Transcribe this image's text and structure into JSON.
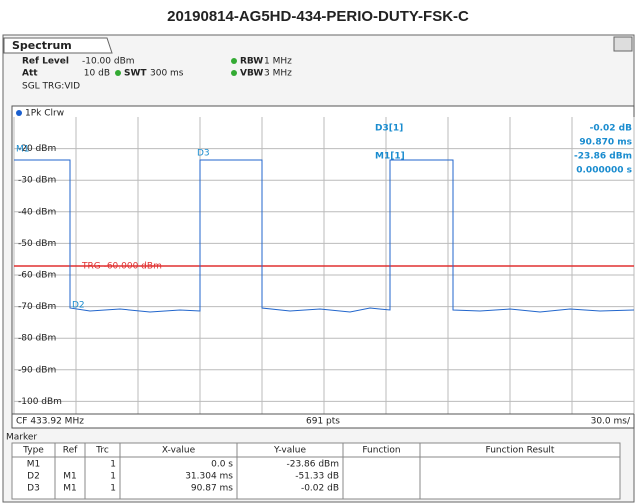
{
  "title": "20190814-AG5HD-434-PERIO-DUTY-FSK-C",
  "tab": "Spectrum",
  "header": {
    "ref_level": "Ref Level",
    "ref_value": "-10.00 dBm",
    "att": "Att",
    "att_value": "10 dB",
    "swt": "SWT",
    "swt_value": "300 ms",
    "rbw": "RBW",
    "rbw_value": "1 MHz",
    "vbw": "VBW",
    "vbw_value": "3 MHz",
    "trigger": "SGL TRG:VID"
  },
  "trace_label": "1Pk Clrw",
  "y_labels": [
    "-20 dBm",
    "-30 dBm",
    "-40 dBm",
    "-50 dBm",
    "-60 dBm",
    "-70 dBm",
    "-80 dBm",
    "-90 dBm",
    "-100 dBm"
  ],
  "trigger_line": "TRG -60.000 dBm",
  "plot_markers": [
    "M1",
    "D2",
    "D3"
  ],
  "marker_info": {
    "d3": "D3[1]",
    "d3_y": "-0.02 dB",
    "d3_x": "90.870 ms",
    "m1": "M1[1]",
    "m1_y": "-23.86 dBm",
    "m1_x": "0.000000 s"
  },
  "footer": {
    "center": "CF 433.92 MHz",
    "points": "691 pts",
    "span": "30.0 ms/"
  },
  "table": {
    "title": "Marker",
    "columns": [
      "Type",
      "Ref",
      "Trc",
      "X-value",
      "Y-value",
      "Function",
      "Function Result"
    ],
    "rows": [
      [
        "M1",
        "",
        "1",
        "0.0 s",
        "-23.86 dBm",
        "",
        ""
      ],
      [
        "D2",
        "M1",
        "1",
        "31.304 ms",
        "-51.33 dB",
        "",
        ""
      ],
      [
        "D3",
        "M1",
        "1",
        "90.87 ms",
        "-0.02 dB",
        "",
        ""
      ]
    ]
  }
}
